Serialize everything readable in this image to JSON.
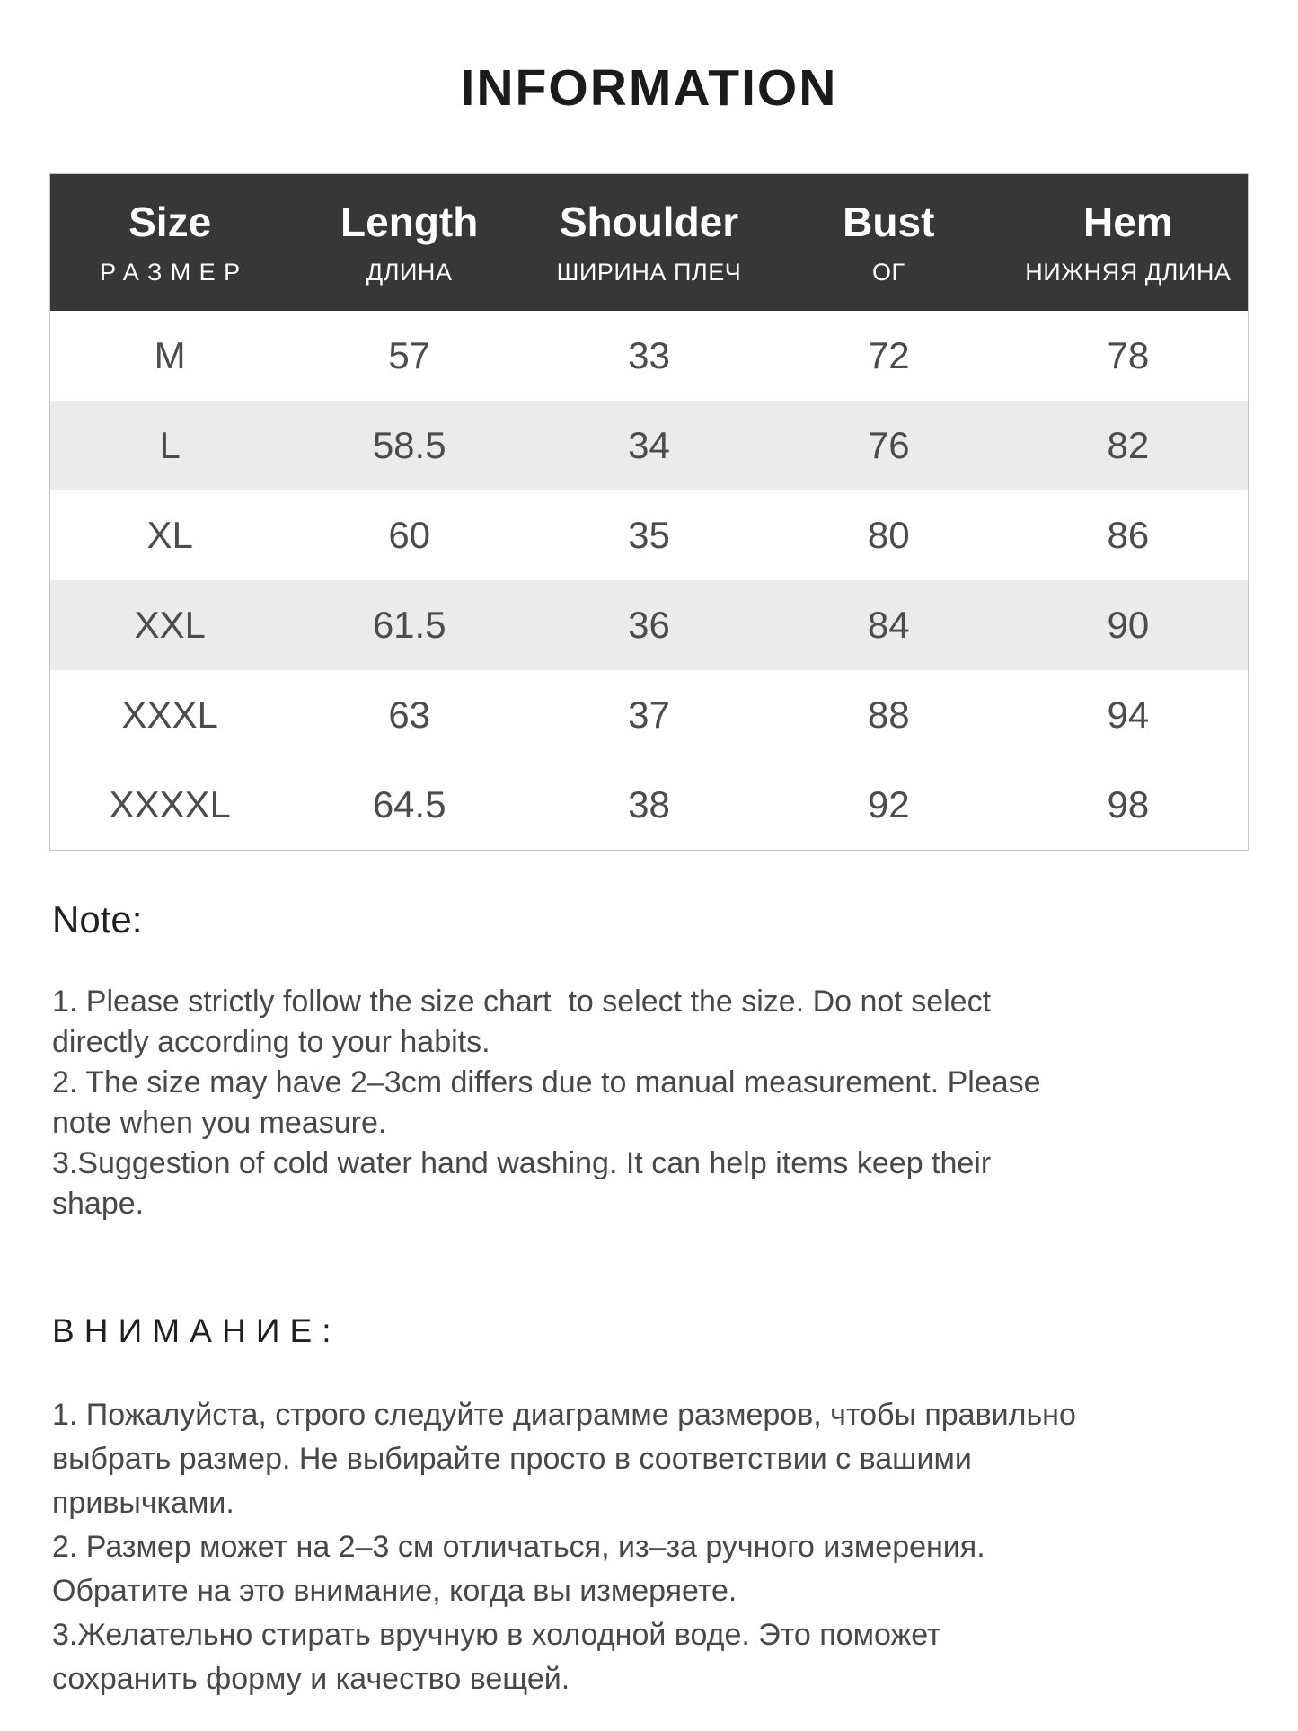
{
  "title": "INFORMATION",
  "size_table": {
    "columns": [
      {
        "label": "Size",
        "sublabel": "РАЗМЕР"
      },
      {
        "label": "Length",
        "sublabel": "ДЛИНА"
      },
      {
        "label": "Shoulder",
        "sublabel": "ШИРИНА ПЛЕЧ"
      },
      {
        "label": "Bust",
        "sublabel": "ОГ"
      },
      {
        "label": "Hem",
        "sublabel": "НИЖНЯЯ ДЛИНА"
      }
    ],
    "rows": [
      {
        "size": "M",
        "length": "57",
        "shoulder": "33",
        "bust": "72",
        "hem": "78"
      },
      {
        "size": "L",
        "length": "58.5",
        "shoulder": "34",
        "bust": "76",
        "hem": "82"
      },
      {
        "size": "XL",
        "length": "60",
        "shoulder": "35",
        "bust": "80",
        "hem": "86"
      },
      {
        "size": "XXL",
        "length": "61.5",
        "shoulder": "36",
        "bust": "84",
        "hem": "90"
      },
      {
        "size": "XXXL",
        "length": "63",
        "shoulder": "37",
        "bust": "88",
        "hem": "94"
      },
      {
        "size": "XXXXL",
        "length": "64.5",
        "shoulder": "38",
        "bust": "92",
        "hem": "98"
      }
    ]
  },
  "note_en": {
    "heading": "Note:",
    "text": "1. Please strictly follow the size chart  to select the size. Do not select\ndirectly according to your habits.\n2. The size may have 2–3cm differs due to manual measurement. Please\nnote when you measure.\n3.Suggestion of cold water hand washing. It can help items keep their\nshape."
  },
  "note_ru": {
    "heading": "ВНИМАНИЕ:",
    "text": "1. Пожалуйста, строго следуйте диаграмме размеров, чтобы правильно\nвыбрать размер. Не выбирайте просто в соответствии с вашими\nпривычками.\n2. Размер может на 2–3 см отличаться, из–за ручного измерения.\nОбратите на это внимание, когда вы измеряете.\n3.Желательно стирать вручную в холодной воде. Это поможет\nсохранить форму и качество вещей."
  },
  "colors": {
    "page_bg": "#ffffff",
    "title_text": "#1b1b1b",
    "header_bg": "#373737",
    "header_text": "#ffffff",
    "row_alt_bg": "#ebebeb",
    "table_border": "#c6c6c6",
    "cell_text": "#4c4c4c",
    "heading_text": "#202020",
    "text": "#484848"
  }
}
